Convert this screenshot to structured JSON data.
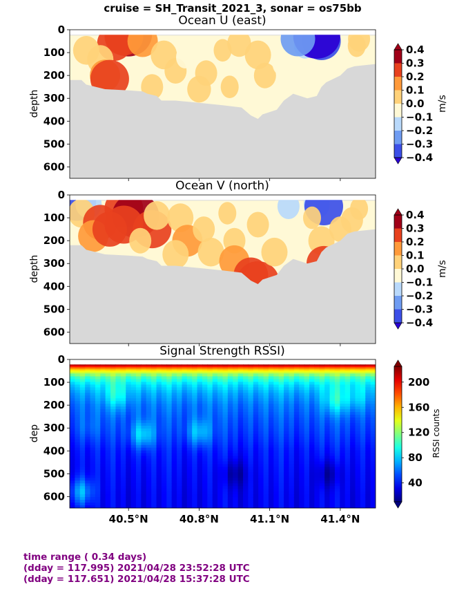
{
  "figure": {
    "suptitle": "cruise = SH_Transit_2021_3,  sonar = os75bb",
    "footer": [
      "time range ( 0.34 days)",
      "(dday = 117.995) 2021/04/28 23:52:28 UTC",
      "(dday = 117.651) 2021/04/28 15:37:28 UTC"
    ],
    "colors": {
      "background": "#ffffff",
      "no_data": "#d8d8d8",
      "footer_text": "#800080"
    }
  },
  "chart_data": [
    {
      "type": "heatmap",
      "title": "Ocean U (east)",
      "ylabel": "depth",
      "xlabel": "",
      "x_ticks": [
        "40.5°N",
        "40.8°N",
        "41.1°N",
        "41.4°N"
      ],
      "x_tick_values": [
        40.5,
        40.8,
        41.1,
        41.4
      ],
      "xlim": [
        40.25,
        41.55
      ],
      "y_ticks": [
        "0",
        "100",
        "200",
        "300",
        "400",
        "500",
        "600"
      ],
      "ylim": [
        650,
        0
      ],
      "colorbar": {
        "label": "m/s",
        "levels": [
          -0.4,
          -0.3,
          -0.2,
          -0.1,
          0.0,
          0.1,
          0.2,
          0.3,
          0.4
        ],
        "tick_labels": [
          "0.4",
          "0.3",
          "0.2",
          "0.1",
          "0.0",
          "−0.1",
          "−0.2",
          "−0.3",
          "−0.4"
        ]
      },
      "bottom_depth": [
        [
          40.25,
          220
        ],
        [
          40.3,
          220
        ],
        [
          40.32,
          240
        ],
        [
          40.4,
          260
        ],
        [
          40.5,
          265
        ],
        [
          40.56,
          270
        ],
        [
          40.58,
          280
        ],
        [
          40.62,
          290
        ],
        [
          40.64,
          310
        ],
        [
          40.7,
          310
        ],
        [
          40.8,
          320
        ],
        [
          40.9,
          330
        ],
        [
          40.98,
          340
        ],
        [
          41.02,
          375
        ],
        [
          41.05,
          390
        ],
        [
          41.07,
          370
        ],
        [
          41.13,
          350
        ],
        [
          41.16,
          310
        ],
        [
          41.2,
          280
        ],
        [
          41.26,
          300
        ],
        [
          41.3,
          290
        ],
        [
          41.32,
          250
        ],
        [
          41.34,
          230
        ],
        [
          41.4,
          200
        ],
        [
          41.43,
          170
        ],
        [
          41.46,
          160
        ],
        [
          41.55,
          150
        ]
      ],
      "features": [
        {
          "x": 40.5,
          "y": 20,
          "value": 0.4
        },
        {
          "x": 40.48,
          "y": 30,
          "value": 0.3
        },
        {
          "x": 40.44,
          "y": 60,
          "value": 0.25
        },
        {
          "x": 40.56,
          "y": 50,
          "value": 0.2
        },
        {
          "x": 40.32,
          "y": 90,
          "value": 0.15
        },
        {
          "x": 40.38,
          "y": 130,
          "value": 0.15
        },
        {
          "x": 40.4,
          "y": 200,
          "value": 0.2
        },
        {
          "x": 40.42,
          "y": 215,
          "value": 0.3
        },
        {
          "x": 40.65,
          "y": 110,
          "value": 0.15
        },
        {
          "x": 40.7,
          "y": 180,
          "value": 0.1
        },
        {
          "x": 40.6,
          "y": 250,
          "value": 0.1
        },
        {
          "x": 40.8,
          "y": 260,
          "value": 0.12
        },
        {
          "x": 40.74,
          "y": 120,
          "value": -0.05
        },
        {
          "x": 40.93,
          "y": 250,
          "value": 0.05
        },
        {
          "x": 41.05,
          "y": 110,
          "value": 0.15
        },
        {
          "x": 40.97,
          "y": 60,
          "value": 0.12
        },
        {
          "x": 41.08,
          "y": 200,
          "value": 0.1
        },
        {
          "x": 41.15,
          "y": 150,
          "value": -0.05
        },
        {
          "x": 41.25,
          "y": 70,
          "value": -0.1
        },
        {
          "x": 41.32,
          "y": 50,
          "value": -0.3
        },
        {
          "x": 41.3,
          "y": 30,
          "value": -0.4
        },
        {
          "x": 41.22,
          "y": 40,
          "value": -0.25
        },
        {
          "x": 41.48,
          "y": 40,
          "value": 0.1
        },
        {
          "x": 41.47,
          "y": 70,
          "value": 0.05
        },
        {
          "x": 41.4,
          "y": 150,
          "value": -0.05
        },
        {
          "x": 41.17,
          "y": 250,
          "value": -0.05
        },
        {
          "x": 40.83,
          "y": 190,
          "value": 0.1
        },
        {
          "x": 40.9,
          "y": 90,
          "value": 0.05
        }
      ]
    },
    {
      "type": "heatmap",
      "title": "Ocean V (north)",
      "ylabel": "depth",
      "xlabel": "",
      "x_ticks": [
        "40.5°N",
        "40.8°N",
        "41.1°N",
        "41.4°N"
      ],
      "x_tick_values": [
        40.5,
        40.8,
        41.1,
        41.4
      ],
      "xlim": [
        40.25,
        41.55
      ],
      "y_ticks": [
        "0",
        "100",
        "200",
        "300",
        "400",
        "500",
        "600"
      ],
      "ylim": [
        650,
        0
      ],
      "colorbar": {
        "label": "m/s",
        "levels": [
          -0.4,
          -0.3,
          -0.2,
          -0.1,
          0.0,
          0.1,
          0.2,
          0.3,
          0.4
        ],
        "tick_labels": [
          "0.4",
          "0.3",
          "0.2",
          "0.1",
          "0.0",
          "−0.1",
          "−0.2",
          "−0.3",
          "−0.4"
        ]
      },
      "bottom_depth": [
        [
          40.25,
          220
        ],
        [
          40.3,
          220
        ],
        [
          40.32,
          240
        ],
        [
          40.4,
          260
        ],
        [
          40.5,
          265
        ],
        [
          40.56,
          270
        ],
        [
          40.58,
          280
        ],
        [
          40.62,
          290
        ],
        [
          40.64,
          310
        ],
        [
          40.7,
          310
        ],
        [
          40.8,
          320
        ],
        [
          40.9,
          330
        ],
        [
          40.98,
          340
        ],
        [
          41.02,
          375
        ],
        [
          41.05,
          390
        ],
        [
          41.07,
          370
        ],
        [
          41.13,
          350
        ],
        [
          41.16,
          310
        ],
        [
          41.2,
          280
        ],
        [
          41.26,
          300
        ],
        [
          41.3,
          290
        ],
        [
          41.32,
          250
        ],
        [
          41.34,
          230
        ],
        [
          41.4,
          200
        ],
        [
          41.43,
          170
        ],
        [
          41.46,
          160
        ],
        [
          41.55,
          150
        ]
      ],
      "features": [
        {
          "x": 40.28,
          "y": 30,
          "value": -0.3
        },
        {
          "x": 40.33,
          "y": 40,
          "value": -0.15
        },
        {
          "x": 40.3,
          "y": 80,
          "value": 0.15
        },
        {
          "x": 40.38,
          "y": 120,
          "value": 0.25
        },
        {
          "x": 40.35,
          "y": 180,
          "value": 0.2
        },
        {
          "x": 40.48,
          "y": 60,
          "value": 0.3
        },
        {
          "x": 40.53,
          "y": 90,
          "value": 0.4
        },
        {
          "x": 40.48,
          "y": 130,
          "value": 0.3
        },
        {
          "x": 40.42,
          "y": 150,
          "value": 0.25
        },
        {
          "x": 40.6,
          "y": 150,
          "value": 0.3
        },
        {
          "x": 40.62,
          "y": 90,
          "value": 0.15
        },
        {
          "x": 40.55,
          "y": 200,
          "value": 0.1
        },
        {
          "x": 40.72,
          "y": 100,
          "value": 0.15
        },
        {
          "x": 40.75,
          "y": 200,
          "value": 0.2
        },
        {
          "x": 40.7,
          "y": 260,
          "value": 0.15
        },
        {
          "x": 40.82,
          "y": 150,
          "value": 0.1
        },
        {
          "x": 40.85,
          "y": 250,
          "value": 0.15
        },
        {
          "x": 40.92,
          "y": 80,
          "value": 0.05
        },
        {
          "x": 40.95,
          "y": 200,
          "value": 0.1
        },
        {
          "x": 40.95,
          "y": 290,
          "value": 0.2
        },
        {
          "x": 41.02,
          "y": 350,
          "value": 0.25
        },
        {
          "x": 41.05,
          "y": 380,
          "value": 0.35
        },
        {
          "x": 41.05,
          "y": 130,
          "value": 0.1
        },
        {
          "x": 41.12,
          "y": 250,
          "value": 0.15
        },
        {
          "x": 41.18,
          "y": 50,
          "value": -0.1
        },
        {
          "x": 41.3,
          "y": 40,
          "value": -0.15
        },
        {
          "x": 41.33,
          "y": 50,
          "value": -0.3
        },
        {
          "x": 41.28,
          "y": 100,
          "value": 0.05
        },
        {
          "x": 41.32,
          "y": 200,
          "value": 0.15
        },
        {
          "x": 41.33,
          "y": 300,
          "value": 0.25
        },
        {
          "x": 41.4,
          "y": 150,
          "value": 0.1
        },
        {
          "x": 41.48,
          "y": 60,
          "value": 0.05
        },
        {
          "x": 41.45,
          "y": 110,
          "value": 0.1
        }
      ]
    },
    {
      "type": "heatmap",
      "title": "Signal Strength RSSI)",
      "ylabel": "dep",
      "xlabel": "",
      "x_ticks": [
        "40.5°N",
        "40.8°N",
        "41.1°N",
        "41.4°N"
      ],
      "x_tick_values": [
        40.5,
        40.8,
        41.1,
        41.4
      ],
      "xlim": [
        40.25,
        41.55
      ],
      "y_ticks": [
        "0",
        "100",
        "200",
        "300",
        "400",
        "500",
        "600"
      ],
      "ylim": [
        650,
        0
      ],
      "colorbar": {
        "label": "RSSI counts",
        "range": [
          10,
          225
        ],
        "tick_labels": [
          "200",
          "160",
          "120",
          "80",
          "40"
        ],
        "tick_values": [
          200,
          160,
          120,
          80,
          40
        ]
      },
      "profile": [
        {
          "depth": 25,
          "value": 215
        },
        {
          "depth": 35,
          "value": 180
        },
        {
          "depth": 45,
          "value": 155
        },
        {
          "depth": 60,
          "value": 130
        },
        {
          "depth": 80,
          "value": 105
        },
        {
          "depth": 110,
          "value": 85
        },
        {
          "depth": 150,
          "value": 72
        },
        {
          "depth": 200,
          "value": 62
        },
        {
          "depth": 260,
          "value": 55
        },
        {
          "depth": 320,
          "value": 50
        },
        {
          "depth": 400,
          "value": 42
        },
        {
          "depth": 500,
          "value": 38
        },
        {
          "depth": 600,
          "value": 35
        },
        {
          "depth": 650,
          "value": 35
        }
      ],
      "anomalies": [
        {
          "x": 40.3,
          "y": 580,
          "value": 75
        },
        {
          "x": 40.33,
          "y": 300,
          "value": 60
        },
        {
          "x": 40.45,
          "y": 160,
          "value": 95
        },
        {
          "x": 40.56,
          "y": 330,
          "value": 85
        },
        {
          "x": 40.8,
          "y": 320,
          "value": 80
        },
        {
          "x": 40.95,
          "y": 500,
          "value": 18
        },
        {
          "x": 41.35,
          "y": 500,
          "value": 18
        },
        {
          "x": 41.38,
          "y": 180,
          "value": 95
        },
        {
          "x": 41.47,
          "y": 170,
          "value": 85
        }
      ]
    }
  ]
}
